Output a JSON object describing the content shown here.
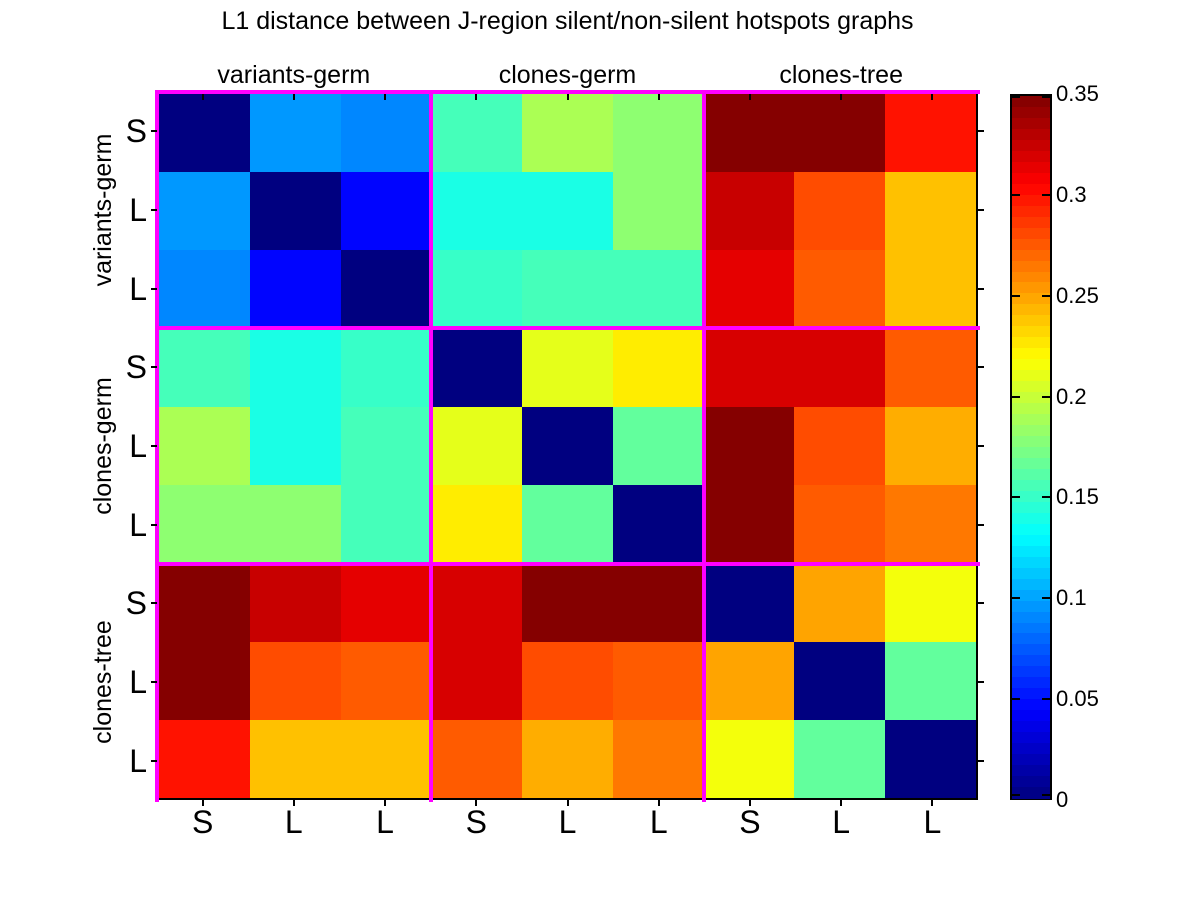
{
  "chart_data": {
    "type": "heatmap",
    "title": "L1 distance between J-region silent/non-silent hotspots graphs",
    "groups": [
      "variants-germ",
      "clones-germ",
      "clones-tree"
    ],
    "tick_labels": [
      "S",
      "L",
      "L",
      "S",
      "L",
      "L",
      "S",
      "L",
      "L"
    ],
    "vmin": 0,
    "vmax": 0.35,
    "colormap": "jet",
    "separator_color": "#ff00ff",
    "colorbar_tick_labels": [
      "0.35",
      "0.3",
      "0.25",
      "0.2",
      "0.15",
      "0.1",
      "0.05",
      "0"
    ],
    "colorbar_tick_values": [
      0.35,
      0.3,
      0.25,
      0.2,
      0.15,
      0.1,
      0.05,
      0
    ],
    "values": [
      [
        0,
        0.096,
        0.09,
        0.155,
        0.19,
        0.18,
        0.348,
        0.348,
        0.3
      ],
      [
        0.096,
        0,
        0.045,
        0.14,
        0.14,
        0.18,
        0.325,
        0.28,
        0.24
      ],
      [
        0.09,
        0.045,
        0,
        0.15,
        0.155,
        0.155,
        0.315,
        0.275,
        0.24
      ],
      [
        0.155,
        0.14,
        0.15,
        0,
        0.21,
        0.225,
        0.32,
        0.32,
        0.275
      ],
      [
        0.19,
        0.14,
        0.155,
        0.21,
        0,
        0.165,
        0.348,
        0.28,
        0.247
      ],
      [
        0.18,
        0.18,
        0.155,
        0.225,
        0.165,
        0,
        0.348,
        0.275,
        0.265
      ],
      [
        0.348,
        0.325,
        0.315,
        0.32,
        0.348,
        0.348,
        0,
        0.25,
        0.215
      ],
      [
        0.348,
        0.28,
        0.275,
        0.32,
        0.28,
        0.275,
        0.25,
        0,
        0.165
      ],
      [
        0.3,
        0.24,
        0.24,
        0.275,
        0.247,
        0.265,
        0.215,
        0.165,
        0
      ]
    ]
  }
}
